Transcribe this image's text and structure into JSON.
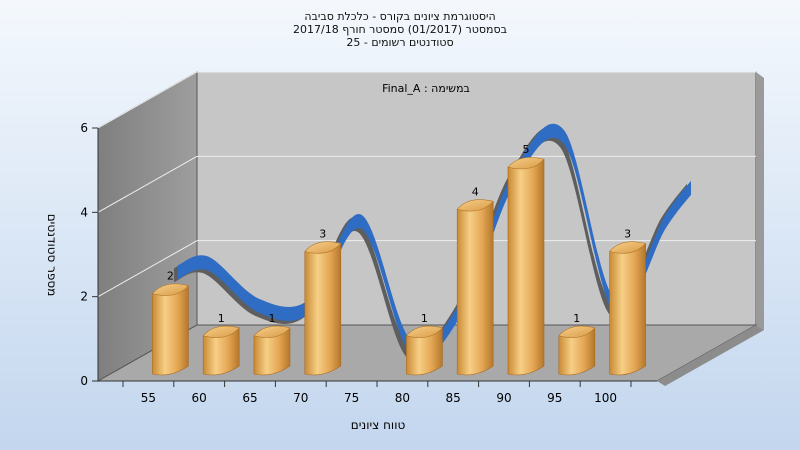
{
  "title": {
    "line1": "היסטוגרמת ציונים בקורס - כלכלת סביבה",
    "line2": "בסמסטר  (01/2017)  סמסטר חורף  2017/18",
    "line3": "סטודנטים רשומים - 25"
  },
  "annotation": "במשימה : Final_A",
  "chart_data": {
    "type": "bar",
    "categories": [
      "55",
      "60",
      "65",
      "70",
      "75",
      "80",
      "85",
      "90",
      "95",
      "100"
    ],
    "values": [
      2,
      1,
      1,
      3,
      0,
      1,
      4,
      5,
      1,
      3
    ],
    "data_labels": [
      "2",
      "1",
      "1",
      "3",
      "",
      "1",
      "4",
      "5",
      "1",
      "3"
    ],
    "xlabel": "טווח ציונים",
    "ylabel": "מספר סטודנטים",
    "ylim": [
      0,
      6
    ],
    "yticks": [
      "0",
      "2",
      "4",
      "6"
    ],
    "grid": true,
    "three_d": true,
    "colors": {
      "bar": "#e0a050",
      "bar_top": "#f2c070",
      "curve": "#2f6dc4",
      "curve_shade": "#5a5a5a",
      "wall": "#c4c4c4",
      "wall_side": "#8a8a8a",
      "floor": "#a8a8a8"
    }
  }
}
